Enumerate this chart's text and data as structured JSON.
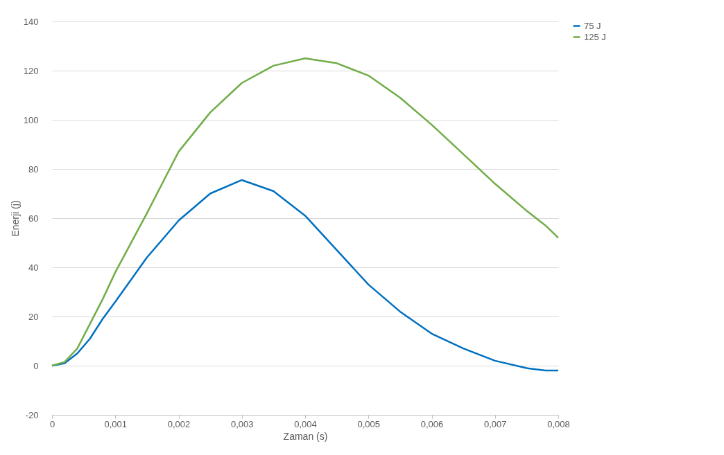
{
  "chart_data": {
    "type": "line",
    "xlabel": "Zaman (s)",
    "ylabel": "Enerji (j)",
    "xlim": [
      0,
      0.008
    ],
    "ylim": [
      -20,
      140
    ],
    "xticks": [
      0,
      {
        "value": 0.001,
        "label": "0,001"
      },
      {
        "value": 0.002,
        "label": "0,002"
      },
      {
        "value": 0.003,
        "label": "0,003"
      },
      {
        "value": 0.004,
        "label": "0,004"
      },
      {
        "value": 0.005,
        "label": "0,005"
      },
      {
        "value": 0.006,
        "label": "0,006"
      },
      {
        "value": 0.007,
        "label": "0,007"
      },
      {
        "value": 0.008,
        "label": "0,008"
      }
    ],
    "yticks": [
      -20,
      0,
      20,
      40,
      60,
      80,
      100,
      120,
      140
    ],
    "grid": "y",
    "legend": "right",
    "marker": "none",
    "line_style": "solid",
    "x": [
      0,
      0.0002,
      0.0004,
      0.0006,
      0.0008,
      0.001,
      0.0015,
      0.002,
      0.0025,
      0.003,
      0.0035,
      0.004,
      0.0045,
      0.005,
      0.0055,
      0.006,
      0.0065,
      0.007,
      0.0075,
      0.0078,
      0.008
    ],
    "series": [
      {
        "name": "75 J",
        "color": "#0070c0",
        "values": [
          0,
          1,
          5,
          11,
          19,
          26,
          44,
          59,
          70,
          75.5,
          71,
          61,
          47,
          33,
          22,
          13,
          7,
          2,
          -1,
          -2,
          -2
        ]
      },
      {
        "name": "125 J",
        "color": "#70ad47",
        "values": [
          0,
          1.5,
          7,
          17,
          27,
          38,
          62,
          87,
          103,
          115,
          122,
          125,
          123,
          118,
          109,
          98,
          86,
          74,
          63,
          57,
          52
        ]
      }
    ]
  }
}
